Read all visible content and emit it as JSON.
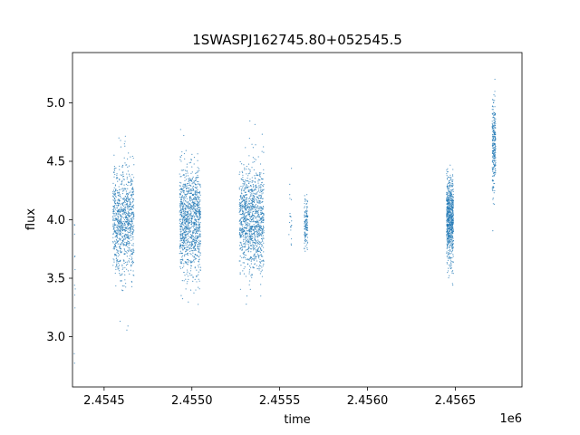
{
  "chart_data": {
    "type": "scatter",
    "title": "1SWASPJ162745.80+052545.5",
    "xlabel": "time",
    "ylabel": "flux",
    "x_offset_label": "1e6",
    "xlim": [
      2454320,
      2456880
    ],
    "ylim": [
      2.57,
      5.43
    ],
    "x_ticks": [
      2454500,
      2455000,
      2455500,
      2456000,
      2456500
    ],
    "x_tick_labels": [
      "2.4545",
      "2.4550",
      "2.4555",
      "2.4560",
      "2.4565"
    ],
    "y_ticks": [
      3.0,
      3.5,
      4.0,
      4.5,
      5.0
    ],
    "y_tick_labels": [
      "3.0",
      "3.5",
      "4.0",
      "4.5",
      "5.0"
    ],
    "grid": false,
    "legend": "none",
    "marker_color": "#1f77b4",
    "series": [
      {
        "segments": [
          {
            "x_start": 2454330,
            "x_end": 2454336,
            "y_center": 3.6,
            "y_spread": 0.6,
            "count": 12
          },
          {
            "x_start": 2454550,
            "x_end": 2454670,
            "y_center": 4.0,
            "y_spread": 0.5,
            "count": 900
          },
          {
            "x_start": 2454930,
            "x_end": 2455050,
            "y_center": 4.0,
            "y_spread": 0.5,
            "count": 1100
          },
          {
            "x_start": 2455270,
            "x_end": 2455410,
            "y_center": 4.0,
            "y_spread": 0.5,
            "count": 1100
          },
          {
            "x_start": 2455550,
            "x_end": 2455570,
            "y_center": 4.0,
            "y_spread": 0.35,
            "count": 20
          },
          {
            "x_start": 2455640,
            "x_end": 2455660,
            "y_center": 3.95,
            "y_spread": 0.25,
            "count": 130
          },
          {
            "x_start": 2456450,
            "x_end": 2456490,
            "y_center": 4.0,
            "y_spread": 0.4,
            "count": 700
          },
          {
            "x_start": 2456710,
            "x_end": 2456730,
            "y_center": 4.6,
            "y_spread": 0.45,
            "count": 250
          }
        ]
      }
    ]
  }
}
